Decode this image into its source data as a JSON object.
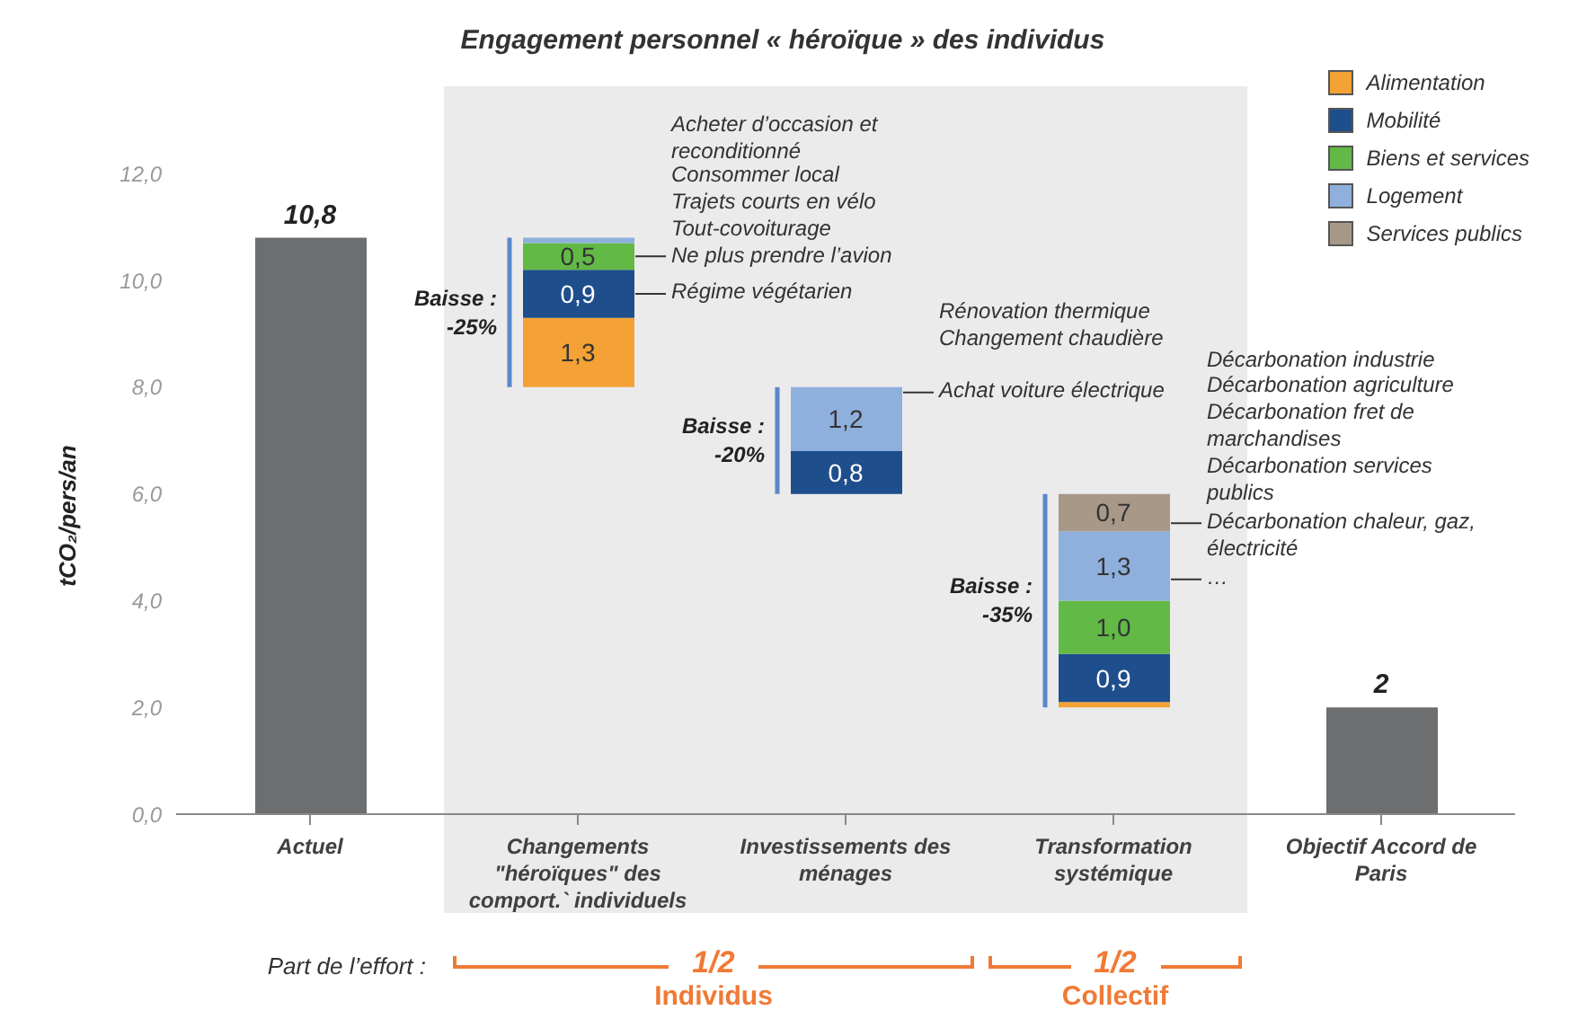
{
  "chart_data": {
    "type": "bar",
    "title": "Engagement personnel « héroïque » des individus",
    "ylabel": "tCO₂/pers/an",
    "categories": [
      "Actuel",
      "Changements \"héroïques\" des comport.` individuels",
      "Investissements des ménages",
      "Transformation systémique",
      "Objectif Accord de Paris"
    ],
    "series": [
      {
        "color": "#6d6e70",
        "values": [
          10.8,
          null,
          null,
          null,
          2
        ],
        "value_labels": [
          "10,8",
          null,
          null,
          null,
          "2"
        ]
      },
      {
        "name": "Alimentation",
        "color": "#f4a235",
        "base": [
          null,
          8.0,
          null,
          2.0,
          null
        ],
        "values": [
          null,
          1.3,
          null,
          0.1,
          null
        ],
        "value_labels": [
          null,
          "1,3",
          null,
          null,
          null
        ]
      },
      {
        "name": "Mobilité",
        "color": "#1f4e8c",
        "base": [
          null,
          9.3,
          6.0,
          2.1,
          null
        ],
        "values": [
          null,
          0.9,
          0.8,
          0.9,
          null
        ],
        "value_labels": [
          null,
          "0,9",
          "0,8",
          "0,9",
          null
        ]
      },
      {
        "name": "Biens et services",
        "color": "#62b946",
        "base": [
          null,
          10.2,
          null,
          3.0,
          null
        ],
        "values": [
          null,
          0.5,
          null,
          1.0,
          null
        ],
        "value_labels": [
          null,
          "0,5",
          null,
          "1,0",
          null
        ]
      },
      {
        "name": "Logement",
        "color": "#8fb0dc",
        "base": [
          null,
          10.7,
          6.8,
          4.0,
          null
        ],
        "values": [
          null,
          0.1,
          1.2,
          1.3,
          null
        ],
        "value_labels": [
          null,
          null,
          "1,2",
          "1,3",
          null
        ]
      },
      {
        "name": "Services publics",
        "color": "#a89888",
        "base": [
          null,
          null,
          null,
          5.3,
          null
        ],
        "values": [
          null,
          null,
          null,
          0.7,
          null
        ],
        "value_labels": [
          null,
          null,
          null,
          "0,7",
          null
        ]
      }
    ],
    "ylim": [
      0,
      13.2
    ],
    "yticks": [
      {
        "value": 0,
        "label": "0,0"
      },
      {
        "value": 2,
        "label": "2,0"
      },
      {
        "value": 4,
        "label": "4,0"
      },
      {
        "value": 6,
        "label": "6,0"
      },
      {
        "value": 8,
        "label": "8,0"
      },
      {
        "value": 10,
        "label": "10,0"
      },
      {
        "value": 12,
        "label": "12,0"
      }
    ],
    "legend": "top right",
    "bands": [
      {
        "axis": "x",
        "from": "Changements \"héroïques\" des comport.` individuels",
        "to": "Transformation systémique",
        "color": "#ebebeb"
      }
    ],
    "annotations": [
      "Acheter d’occasion et reconditionné",
      "Consommer local",
      "Trajets courts en vélo",
      "Tout-covoiturage",
      "Ne plus prendre l’avion",
      "Régime végétarien",
      "Rénovation thermique",
      "Changement chaudière",
      "Achat voiture électrique",
      "Décarbonation industrie",
      "Décarbonation agriculture",
      "Décarbonation fret de marchandises",
      "Décarbonation services publics",
      "Décarbonation chaleur, gaz, électricité",
      "…",
      "Baisse : -25%",
      "Baisse : -20%",
      "Baisse : -35%",
      "Part de l’effort :",
      "1/2",
      "Individus",
      "1/2",
      "Collectif"
    ]
  }
}
